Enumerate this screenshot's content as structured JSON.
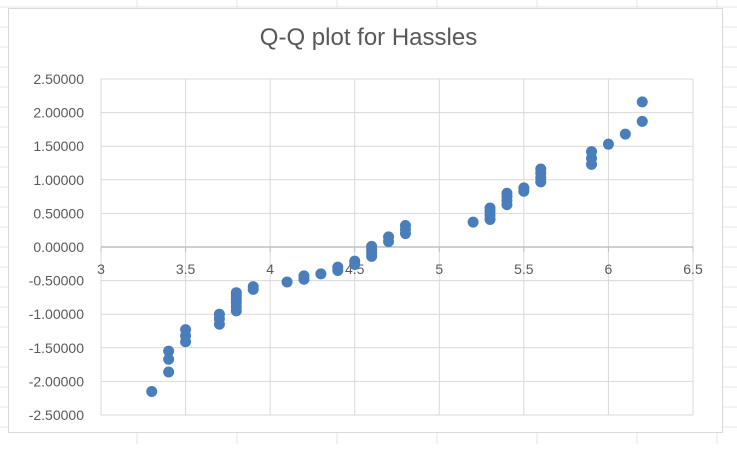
{
  "chart_data": {
    "type": "scatter",
    "title": "Q-Q plot for Hassles",
    "xlabel": "",
    "ylabel": "",
    "xlim": [
      3,
      6.5
    ],
    "ylim": [
      -2.5,
      2.5
    ],
    "x_ticks": [
      3,
      3.5,
      4,
      4.5,
      5,
      5.5,
      6,
      6.5
    ],
    "x_tick_labels": [
      "3",
      "3.5",
      "4",
      "4.5",
      "5",
      "5.5",
      "6",
      "6.5"
    ],
    "y_ticks": [
      2.5,
      2.0,
      1.5,
      1.0,
      0.5,
      0.0,
      -0.5,
      -1.0,
      -1.5,
      -2.0,
      -2.5
    ],
    "y_tick_labels": [
      "2.50000",
      "2.00000",
      "1.50000",
      "1.00000",
      "0.50000",
      "0.00000",
      "-0.50000",
      "-1.00000",
      "-1.50000",
      "-2.00000",
      "-2.50000"
    ],
    "grid": {
      "x_major": true,
      "y_major": true
    },
    "marker_color": "#4a7ebb",
    "grid_color": "#d9d9d9",
    "axis_color": "#bfbfbf",
    "points": [
      [
        3.3,
        -2.15
      ],
      [
        3.4,
        -1.86
      ],
      [
        3.4,
        -1.67
      ],
      [
        3.4,
        -1.55
      ],
      [
        3.5,
        -1.41
      ],
      [
        3.5,
        -1.32
      ],
      [
        3.5,
        -1.23
      ],
      [
        3.7,
        -1.15
      ],
      [
        3.7,
        -1.07
      ],
      [
        3.7,
        -1.0
      ],
      [
        3.8,
        -0.95
      ],
      [
        3.8,
        -0.89
      ],
      [
        3.8,
        -0.83
      ],
      [
        3.8,
        -0.78
      ],
      [
        3.8,
        -0.73
      ],
      [
        3.8,
        -0.68
      ],
      [
        3.9,
        -0.63
      ],
      [
        3.9,
        -0.59
      ],
      [
        4.1,
        -0.52
      ],
      [
        4.2,
        -0.48
      ],
      [
        4.2,
        -0.43
      ],
      [
        4.3,
        -0.4
      ],
      [
        4.4,
        -0.35
      ],
      [
        4.4,
        -0.3
      ],
      [
        4.5,
        -0.26
      ],
      [
        4.5,
        -0.21
      ],
      [
        4.6,
        -0.14
      ],
      [
        4.6,
        -0.09
      ],
      [
        4.6,
        -0.04
      ],
      [
        4.6,
        0.01
      ],
      [
        4.7,
        0.08
      ],
      [
        4.7,
        0.15
      ],
      [
        4.8,
        0.2
      ],
      [
        4.8,
        0.26
      ],
      [
        4.8,
        0.32
      ],
      [
        5.2,
        0.37
      ],
      [
        5.3,
        0.41
      ],
      [
        5.3,
        0.47
      ],
      [
        5.3,
        0.53
      ],
      [
        5.3,
        0.58
      ],
      [
        5.4,
        0.63
      ],
      [
        5.4,
        0.69
      ],
      [
        5.4,
        0.75
      ],
      [
        5.4,
        0.8
      ],
      [
        5.5,
        0.83
      ],
      [
        5.5,
        0.88
      ],
      [
        5.6,
        0.97
      ],
      [
        5.6,
        1.03
      ],
      [
        5.6,
        1.1
      ],
      [
        5.6,
        1.16
      ],
      [
        5.9,
        1.23
      ],
      [
        5.9,
        1.32
      ],
      [
        5.9,
        1.42
      ],
      [
        6.0,
        1.53
      ],
      [
        6.1,
        1.68
      ],
      [
        6.2,
        1.87
      ],
      [
        6.2,
        2.16
      ]
    ]
  }
}
